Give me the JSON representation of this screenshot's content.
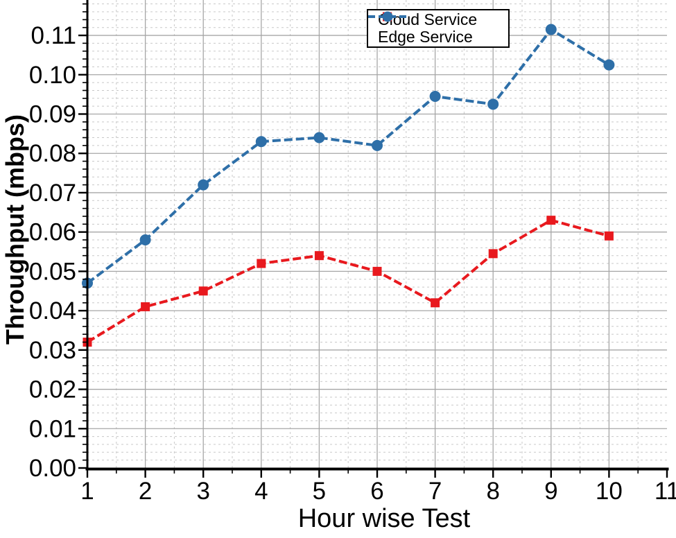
{
  "chart_data": {
    "type": "line",
    "title": "",
    "xlabel": "Hour wise Test",
    "ylabel": "Throughput (mbps)",
    "x": [
      1,
      2,
      3,
      4,
      5,
      6,
      7,
      8,
      9,
      10
    ],
    "series": [
      {
        "name": "Cloud Service",
        "color": "#e8191e",
        "marker": "square",
        "line_style": "dashed",
        "values": [
          0.032,
          0.041,
          0.045,
          0.052,
          0.054,
          0.05,
          0.042,
          0.0545,
          0.063,
          0.059
        ]
      },
      {
        "name": "Edge Service",
        "color": "#2e6fa8",
        "marker": "circle",
        "line_style": "dashed",
        "values": [
          0.047,
          0.058,
          0.072,
          0.083,
          0.084,
          0.082,
          0.0945,
          0.0925,
          0.1115,
          0.1025
        ]
      }
    ],
    "xlim": [
      1,
      11
    ],
    "ylim": [
      0,
      0.119
    ],
    "x_ticks": [
      "1",
      "2",
      "3",
      "4",
      "5",
      "6",
      "7",
      "8",
      "9",
      "10",
      "11"
    ],
    "y_ticks": [
      "0.00",
      "0.01",
      "0.02",
      "0.03",
      "0.04",
      "0.05",
      "0.06",
      "0.07",
      "0.08",
      "0.09",
      "0.10",
      "0.11"
    ],
    "y_tick_step": 0.01,
    "y_minor_step": 0.002,
    "x_minor_step": 0.5,
    "grid": {
      "major": true,
      "minor": true,
      "major_color": "#a6a6a6",
      "minor_color": "#c8c8c8",
      "minor_dashed": true
    },
    "legend": {
      "position": "top-center",
      "entries": [
        "Cloud Service",
        "Edge Service"
      ]
    },
    "axis_color": "#000000",
    "text_color": "#000000"
  }
}
